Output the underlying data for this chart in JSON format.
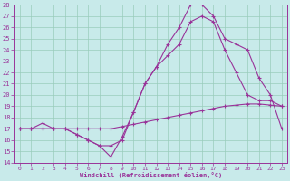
{
  "xlabel": "Windchill (Refroidissement éolien,°C)",
  "xlim": [
    -0.5,
    23.5
  ],
  "ylim": [
    14,
    28
  ],
  "yticks": [
    14,
    15,
    16,
    17,
    18,
    19,
    20,
    21,
    22,
    23,
    24,
    25,
    26,
    27,
    28
  ],
  "xticks": [
    0,
    1,
    2,
    3,
    4,
    5,
    6,
    7,
    8,
    9,
    10,
    11,
    12,
    13,
    14,
    15,
    16,
    17,
    18,
    19,
    20,
    21,
    22,
    23
  ],
  "bg_color": "#c8eaea",
  "line_color": "#993399",
  "grid_color": "#99ccbb",
  "line1_x": [
    0,
    1,
    2,
    3,
    4,
    5,
    6,
    7,
    8,
    9,
    10,
    11,
    12,
    13,
    14,
    15,
    16,
    17,
    18,
    19,
    20,
    21,
    22,
    23
  ],
  "line1_y": [
    17.0,
    17.0,
    17.0,
    17.0,
    17.0,
    17.0,
    17.0,
    17.0,
    17.0,
    17.2,
    17.4,
    17.6,
    17.8,
    18.0,
    18.2,
    18.4,
    18.6,
    18.8,
    19.0,
    19.1,
    19.2,
    19.2,
    19.1,
    19.0
  ],
  "line2_x": [
    0,
    1,
    2,
    3,
    4,
    5,
    6,
    7,
    8,
    9,
    10,
    11,
    12,
    13,
    14,
    15,
    16,
    17,
    18,
    19,
    20,
    21,
    22,
    23
  ],
  "line2_y": [
    17.0,
    17.0,
    17.0,
    17.0,
    17.0,
    16.5,
    16.0,
    15.5,
    15.5,
    16.0,
    18.5,
    21.0,
    22.5,
    23.5,
    24.5,
    26.5,
    27.0,
    26.5,
    24.0,
    22.0,
    20.0,
    19.5,
    19.5,
    19.0
  ],
  "line3_x": [
    0,
    1,
    2,
    3,
    4,
    5,
    6,
    7,
    8,
    9,
    10,
    11,
    12,
    13,
    14,
    15,
    16,
    17,
    18,
    19,
    20,
    21,
    22,
    23
  ],
  "line3_y": [
    17.0,
    17.0,
    17.5,
    17.0,
    17.0,
    16.5,
    16.0,
    15.5,
    14.5,
    16.3,
    18.5,
    21.0,
    22.5,
    24.5,
    26.0,
    28.0,
    28.0,
    27.0,
    25.0,
    24.5,
    24.0,
    21.5,
    20.0,
    17.0
  ]
}
